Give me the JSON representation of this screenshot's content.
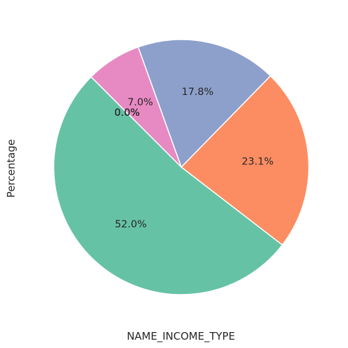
{
  "chart_data": {
    "type": "pie",
    "xlabel": "NAME_INCOME_TYPE",
    "ylabel": "Percentage",
    "start_angle_deg": 135,
    "direction": "counterclockwise",
    "slices": [
      {
        "value": 52.0,
        "label": "52.0%",
        "color": "#66c2a5"
      },
      {
        "value": 23.1,
        "label": "23.1%",
        "color": "#fc8d62"
      },
      {
        "value": 17.8,
        "label": "17.8%",
        "color": "#8da0cb"
      },
      {
        "value": 7.0,
        "label": "7.0%",
        "color": "#e78ac3"
      },
      {
        "value": 0.0,
        "label": "0.0%",
        "color": "#a6d854"
      },
      {
        "value": 0.0,
        "label": "0.0%",
        "color": "#ffd92f"
      },
      {
        "value": 0.0,
        "label": "0.0%",
        "color": "#e5c494"
      },
      {
        "value": 0.0,
        "label": "0.0%",
        "color": "#b3b3b3"
      }
    ]
  }
}
